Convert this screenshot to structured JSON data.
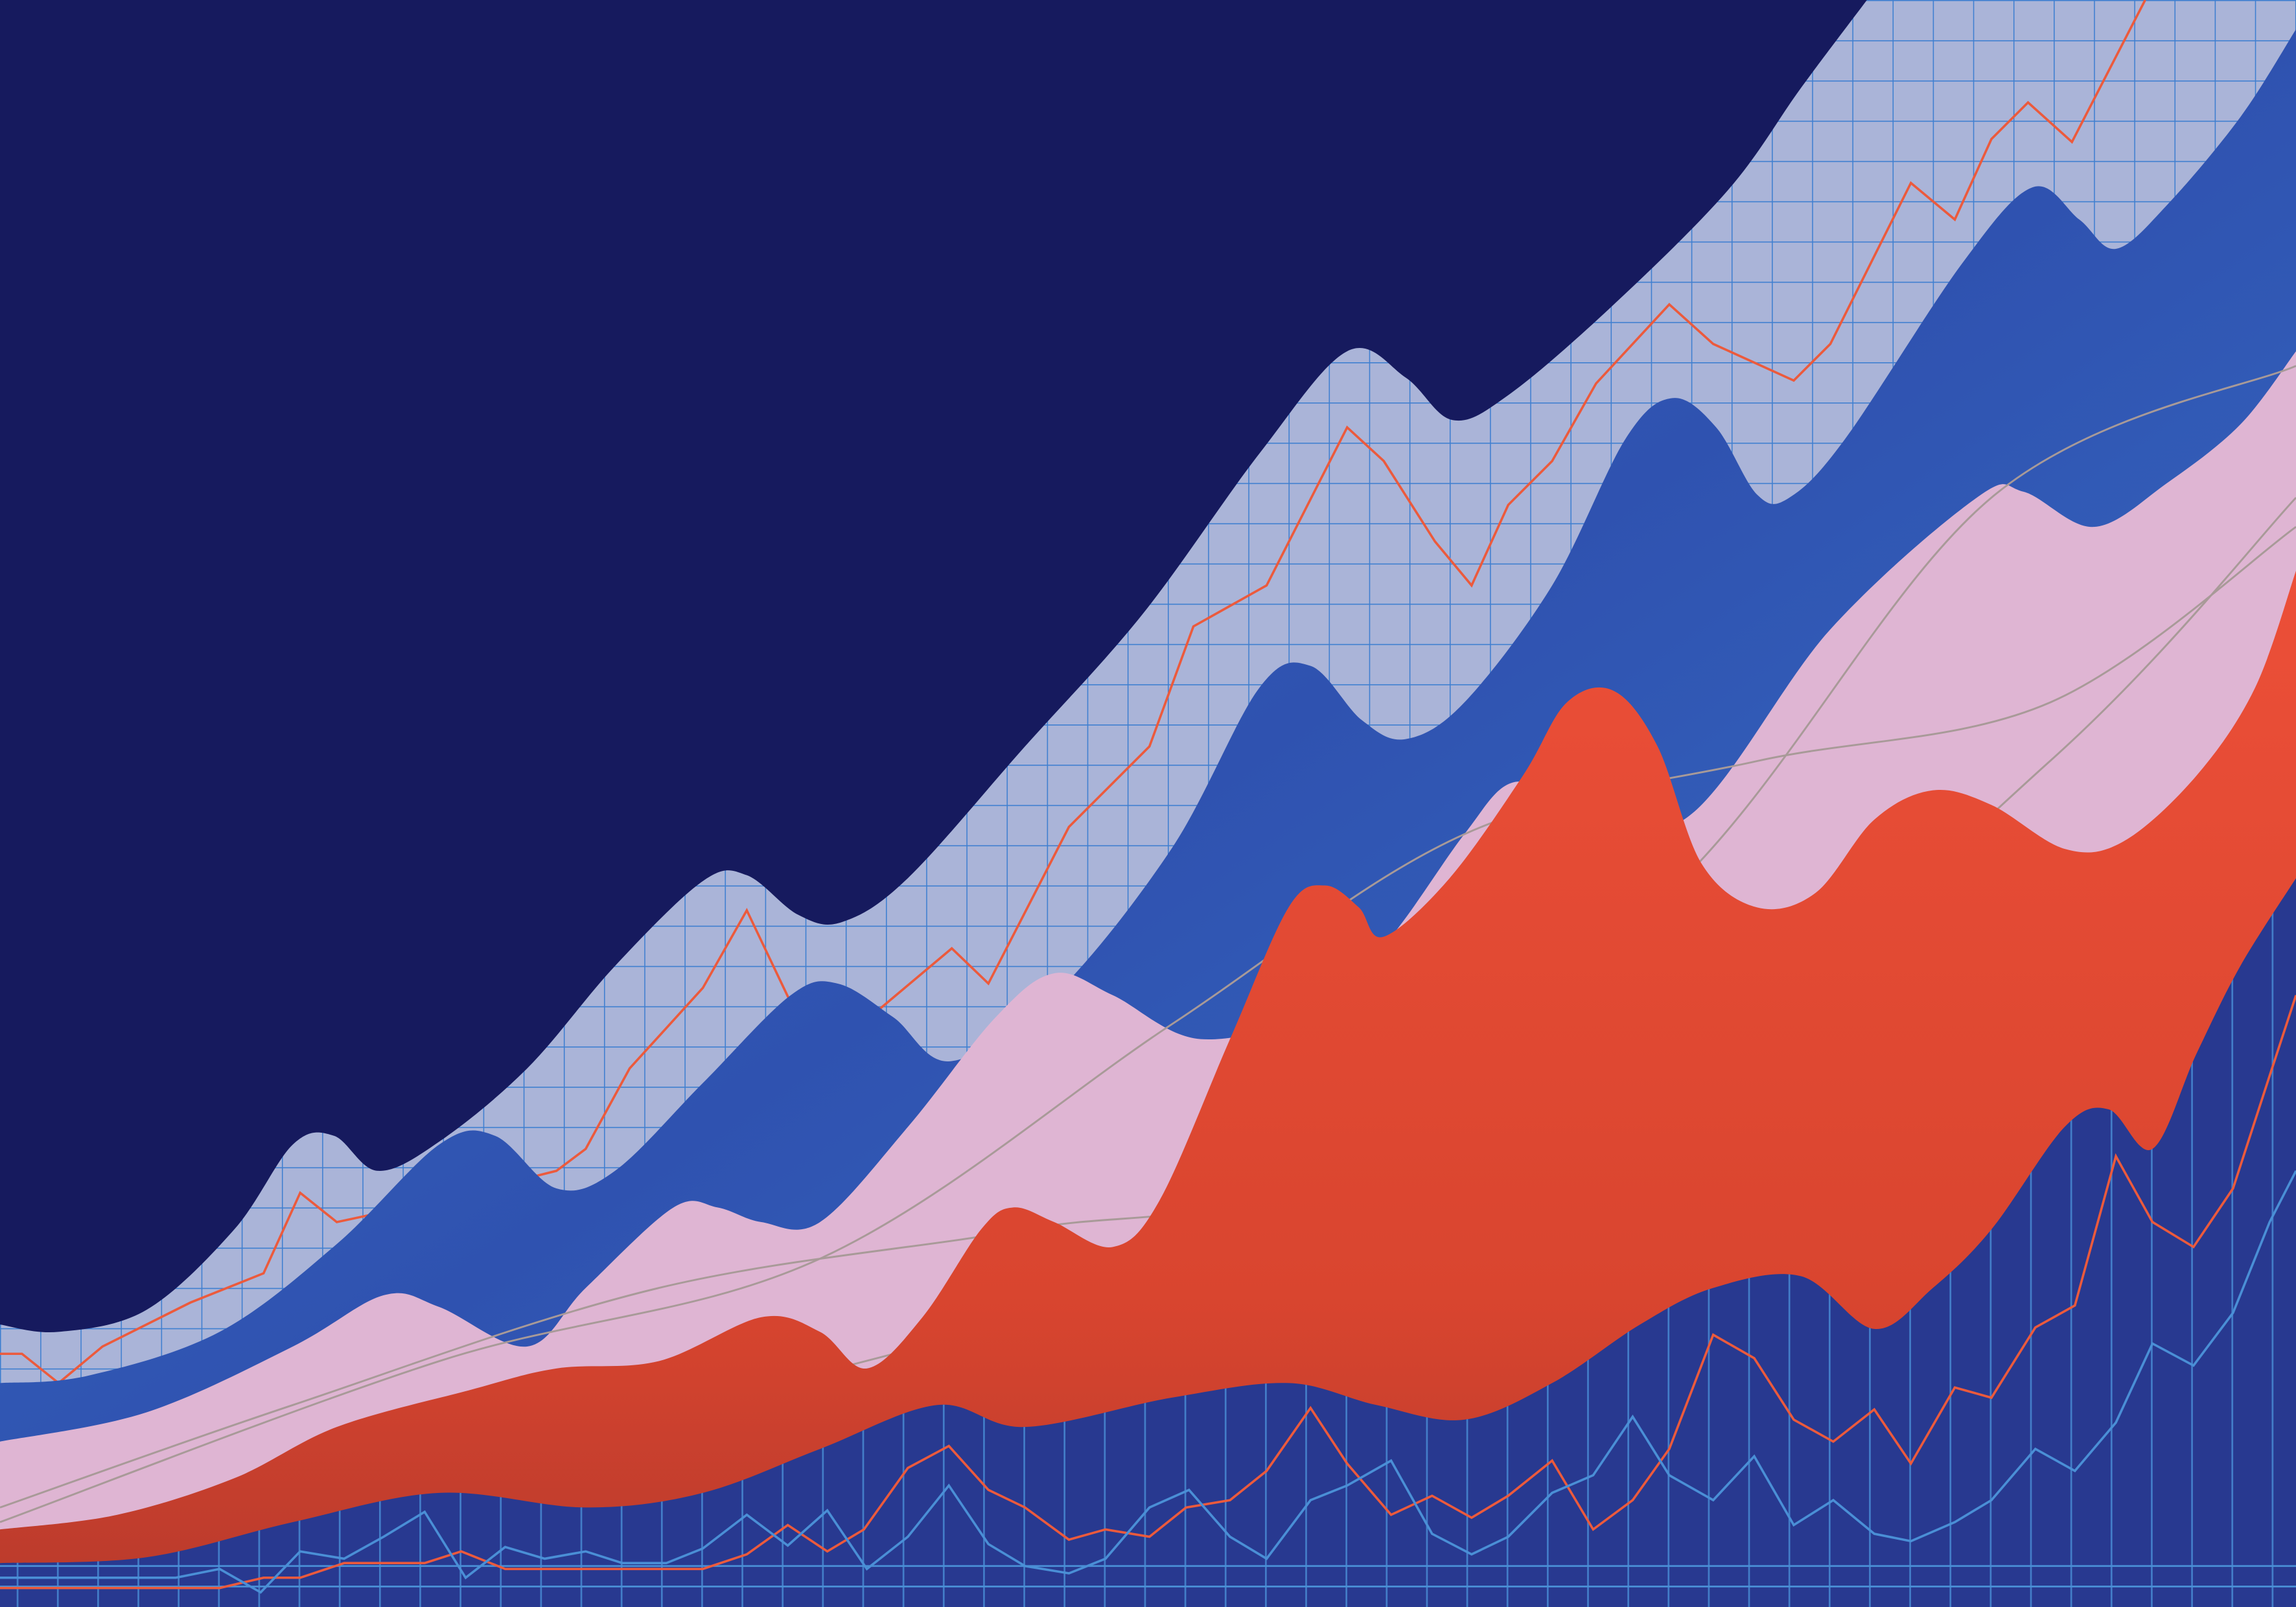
{
  "colors": {
    "navy_sky": "#161a5e",
    "grid_background": "#aab4d8",
    "grid_lines": "#3f7fd0",
    "blue_band": "#3566bd",
    "blue_band_dark": "#2a3f9e",
    "pink_band": "#dfb5d3",
    "red_band": "#e84c36",
    "red_band_dark": "#b83a2c",
    "bottom_panel": "#283990",
    "red_line": "#ec5a3c",
    "light_blue_line": "#4a8fd6",
    "gray_line": "#a89a98"
  }
}
